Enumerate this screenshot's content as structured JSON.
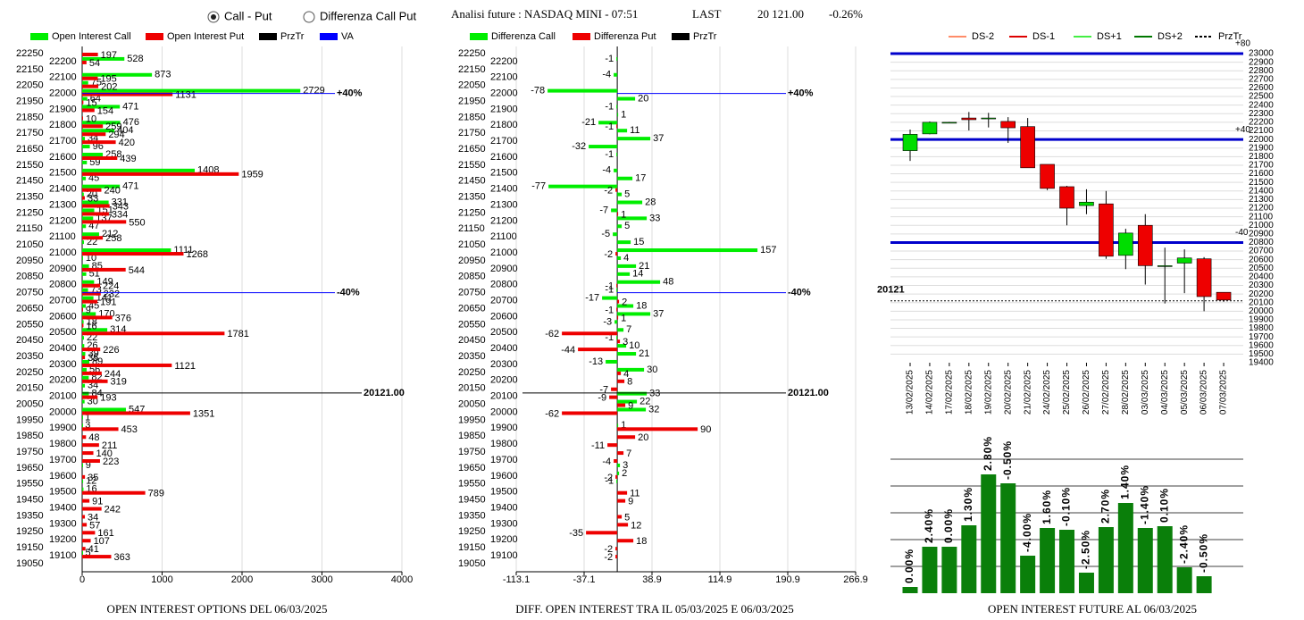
{
  "header": {
    "options": [
      "Call - Put",
      "Differenza Call Put"
    ],
    "title": "Analisi future : NASDAQ MINI - 07:51",
    "last_label": "LAST",
    "last": "20 121.00",
    "change": "-0.26%"
  },
  "chart_data": [
    {
      "type": "bar",
      "orientation": "horizontal",
      "categories": [
        22250,
        22200,
        22150,
        22100,
        22050,
        22000,
        21950,
        21900,
        21850,
        21800,
        21750,
        21700,
        21650,
        21600,
        21550,
        21500,
        21450,
        21400,
        21350,
        21300,
        21250,
        21200,
        21150,
        21100,
        21050,
        21000,
        20950,
        20900,
        20850,
        20800,
        20750,
        20700,
        20650,
        20600,
        20550,
        20500,
        20450,
        20400,
        20350,
        20300,
        20250,
        20200,
        20150,
        20100,
        20050,
        20000,
        19950,
        19900,
        19850,
        19800,
        19750,
        19700,
        19650,
        19600,
        19550,
        19500,
        19450,
        19400,
        19350,
        19300,
        19250,
        19200,
        19150,
        19100,
        19050
      ],
      "series": [
        {
          "name": "Open Interest Call",
          "color": "#00ee00",
          "values": [
            null,
            528,
            null,
            873,
            75,
            2729,
            64,
            471,
            null,
            476,
            404,
            34,
            96,
            258,
            59,
            1408,
            45,
            471,
            20,
            331,
            151,
            137,
            47,
            212,
            22,
            1111,
            10,
            85,
            51,
            149,
            73,
            141,
            45,
            170,
            18,
            314,
            22,
            26,
            39,
            89,
            56,
            82,
            34,
            84,
            30,
            547,
            1,
            3,
            null,
            null,
            null,
            null,
            9,
            null,
            12,
            16,
            null,
            null,
            null,
            null,
            null,
            null,
            null,
            5,
            null
          ]
        },
        {
          "name": "Open Interest Put",
          "color": "#ee0000",
          "values": [
            197,
            54,
            null,
            195,
            202,
            1131,
            15,
            154,
            10,
            259,
            294,
            420,
            null,
            439,
            null,
            1959,
            null,
            240,
            33,
            343,
            334,
            550,
            null,
            258,
            null,
            1268,
            null,
            544,
            null,
            224,
            232,
            191,
            9,
            376,
            16,
            1781,
            null,
            226,
            35,
            1121,
            244,
            319,
            null,
            193,
            null,
            1351,
            null,
            453,
            48,
            211,
            140,
            223,
            null,
            35,
            null,
            789,
            91,
            242,
            34,
            57,
            161,
            107,
            41,
            363,
            null
          ]
        }
      ],
      "legend_extra": [
        {
          "name": "PrzTr",
          "color": "#000000"
        },
        {
          "name": "VA",
          "color": "#0000ff"
        }
      ],
      "xlim": [
        0,
        4000
      ],
      "xticks": [
        0,
        1000,
        2000,
        3000,
        4000
      ],
      "ylim": [
        19050,
        22250
      ],
      "lines": [
        {
          "value": 22000,
          "label": "+40%",
          "color": "#0000ff"
        },
        {
          "value": 20750,
          "label": "-40%",
          "color": "#0000ff"
        },
        {
          "value": 20121,
          "label": "20121.00",
          "color": "#000000"
        }
      ],
      "footer": "OPEN INTEREST OPTIONS DEL 06/03/2025"
    },
    {
      "type": "bar",
      "orientation": "horizontal",
      "categories": [
        22250,
        22200,
        22150,
        22100,
        22050,
        22000,
        21950,
        21900,
        21850,
        21800,
        21750,
        21700,
        21650,
        21600,
        21550,
        21500,
        21450,
        21400,
        21350,
        21300,
        21250,
        21200,
        21150,
        21100,
        21050,
        21000,
        20950,
        20900,
        20850,
        20800,
        20750,
        20700,
        20650,
        20600,
        20550,
        20500,
        20450,
        20400,
        20350,
        20300,
        20250,
        20200,
        20150,
        20100,
        20050,
        20000,
        19950,
        19900,
        19850,
        19800,
        19750,
        19700,
        19650,
        19600,
        19550,
        19500,
        19450,
        19400,
        19350,
        19300,
        19250,
        19200,
        19150,
        19100,
        19050
      ],
      "series": [
        {
          "name": "Differenza Call",
          "color": "#00ee00",
          "values": [
            null,
            -1,
            null,
            -4,
            null,
            -78,
            20,
            -1,
            1,
            -21,
            11,
            37,
            -32,
            -1,
            null,
            -4,
            17,
            -77,
            5,
            28,
            -7,
            33,
            5,
            -5,
            15,
            157,
            4,
            21,
            14,
            48,
            -1,
            -17,
            18,
            37,
            -3,
            7,
            -1,
            10,
            21,
            -13,
            30,
            null,
            null,
            33,
            22,
            32,
            null,
            1,
            null,
            null,
            null,
            null,
            3,
            2,
            -1,
            null,
            null,
            null,
            null,
            null,
            null,
            null,
            null,
            null,
            null
          ]
        },
        {
          "name": "Differenza Put",
          "color": "#ee0000",
          "values": [
            null,
            null,
            null,
            null,
            null,
            null,
            null,
            null,
            null,
            -1,
            null,
            null,
            null,
            null,
            null,
            null,
            null,
            -2,
            null,
            null,
            1,
            null,
            null,
            null,
            null,
            -2,
            null,
            null,
            null,
            -1,
            null,
            2,
            -1,
            1,
            null,
            -62,
            3,
            -44,
            null,
            null,
            4,
            8,
            -7,
            -9,
            9,
            -62,
            null,
            90,
            20,
            -11,
            7,
            -4,
            null,
            -2,
            null,
            11,
            9,
            null,
            5,
            12,
            -35,
            18,
            -2,
            -2,
            null
          ]
        }
      ],
      "legend_extra": [
        {
          "name": "PrzTr",
          "color": "#000000"
        }
      ],
      "xlim": [
        -113.1,
        266.9
      ],
      "xticks": [
        -113.1,
        -37.1,
        38.9,
        114.9,
        190.9,
        266.9
      ],
      "ylim": [
        19050,
        22250
      ],
      "lines": [
        {
          "value": 22000,
          "label": "+40%",
          "color": "#0000ff"
        },
        {
          "value": 20750,
          "label": "-40%",
          "color": "#0000ff"
        },
        {
          "value": 20121,
          "label": "20121.00",
          "color": "#000000"
        }
      ],
      "footer": "DIFF. OPEN INTEREST TRA IL 05/03/2025 E 06/03/2025"
    },
    {
      "type": "candlestick",
      "categories": [
        "13/02/2025",
        "14/02/2025",
        "17/02/2025",
        "18/02/2025",
        "19/02/2025",
        "20/02/2025",
        "21/02/2025",
        "24/02/2025",
        "25/02/2025",
        "26/02/2025",
        "27/02/2025",
        "28/02/2025",
        "03/03/2025",
        "04/03/2025",
        "05/03/2025",
        "06/03/2025",
        "07/03/2025"
      ],
      "open": [
        21870,
        22065,
        22200,
        22250,
        22250,
        22210,
        22150,
        21710,
        21450,
        21230,
        21250,
        20650,
        21000,
        20530,
        20560,
        20610,
        20220
      ],
      "high": [
        22115,
        22210,
        22205,
        22320,
        22310,
        22260,
        22250,
        21710,
        21460,
        21420,
        21400,
        20960,
        21130,
        20740,
        20720,
        20630,
        20220
      ],
      "low": [
        21750,
        22060,
        22195,
        22105,
        22140,
        21960,
        21670,
        21410,
        21000,
        21130,
        20610,
        20490,
        20310,
        20090,
        20210,
        20000,
        20110
      ],
      "close": [
        22060,
        22200,
        22200,
        22230,
        22250,
        22136,
        21670,
        21430,
        21200,
        21270,
        20640,
        20910,
        20530,
        20530,
        20620,
        20170,
        20130
      ],
      "up_color": "#00dd00",
      "down_color": "#ee0000",
      "legend": [
        {
          "name": "DS-2",
          "color": "#ff8c69"
        },
        {
          "name": "DS-1",
          "color": "#dd0000"
        },
        {
          "name": "DS+1",
          "color": "#44ee44"
        },
        {
          "name": "DS+2",
          "color": "#007700"
        },
        {
          "name": "PrzTr",
          "color": "#000000",
          "dashed": true
        }
      ],
      "ylim": [
        19400,
        23000
      ],
      "yticks": [
        19400,
        19500,
        19600,
        19700,
        19800,
        19900,
        20000,
        20100,
        20200,
        20300,
        20400,
        20500,
        20600,
        20700,
        20800,
        20900,
        21000,
        21100,
        21200,
        21300,
        21400,
        21500,
        21600,
        21700,
        21800,
        21900,
        22000,
        22100,
        22200,
        22300,
        22400,
        22500,
        22600,
        22700,
        22800,
        22900,
        23000
      ],
      "grid": true,
      "lines": [
        {
          "value": 23000,
          "label": "+80",
          "color": "#0000cc"
        },
        {
          "value": 22000,
          "label": "+40",
          "color": "#0000cc"
        },
        {
          "value": 20800,
          "label": "-40",
          "color": "#0000cc"
        }
      ],
      "price": {
        "value": 20121,
        "label": "20121"
      }
    },
    {
      "type": "bar",
      "orientation": "vertical",
      "values": [
        7,
        52,
        52,
        76,
        133,
        123,
        42,
        73,
        71,
        23,
        74,
        101,
        73,
        75,
        29,
        19
      ],
      "changes": [
        "0.00%",
        "2.40%",
        "0.00%",
        "1.30%",
        "2.80%",
        "-0.50%",
        "-4.00%",
        "1.60%",
        "-0.10%",
        "-2.50%",
        "2.70%",
        "1.40%",
        "-1.40%",
        "0.10%",
        "-2.40%",
        "-0.50%"
      ],
      "color": "#0a7f0a",
      "ylim": [
        0,
        150
      ],
      "yticks": [
        30,
        60,
        90,
        120,
        150
      ],
      "grid": true,
      "footer": "OPEN INTEREST FUTURE AL 06/03/2025"
    }
  ]
}
